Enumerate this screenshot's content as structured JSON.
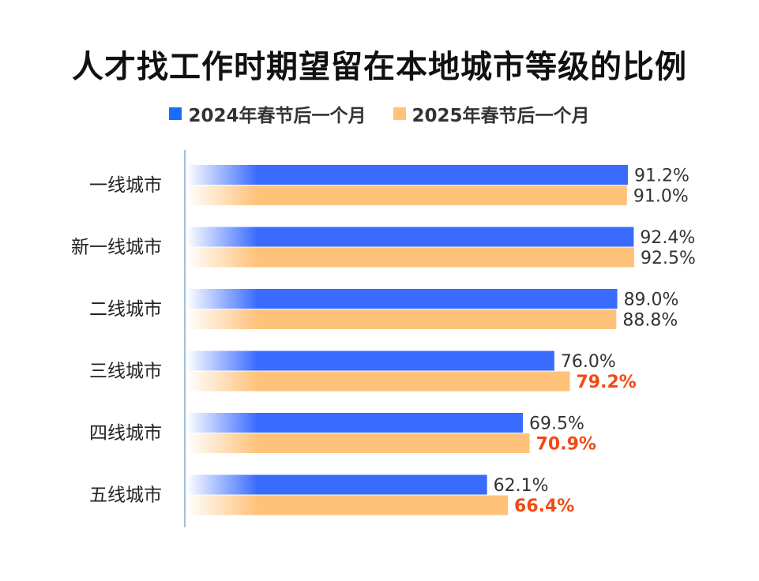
{
  "chart_data": {
    "type": "bar",
    "orientation": "horizontal",
    "title": "人才找工作时期望留在本地城市等级的比例",
    "categories": [
      "一线城市",
      "新一线城市",
      "二线城市",
      "三线城市",
      "四线城市",
      "五线城市"
    ],
    "series": [
      {
        "name": "2024年春节后一个月",
        "color": "#3a6bff",
        "values": [
          91.2,
          92.4,
          89.0,
          76.0,
          69.5,
          62.1
        ],
        "labels": [
          "91.2%",
          "92.4%",
          "89.0%",
          "76.0%",
          "69.5%",
          "62.1%"
        ],
        "highlight": [
          false,
          false,
          false,
          false,
          false,
          false
        ]
      },
      {
        "name": "2025年春节后一个月",
        "color": "#ffc27a",
        "values": [
          91.0,
          92.5,
          88.8,
          79.2,
          70.9,
          66.4
        ],
        "labels": [
          "91.0%",
          "92.5%",
          "88.8%",
          "79.2%",
          "70.9%",
          "66.4%"
        ],
        "highlight": [
          false,
          false,
          false,
          true,
          true,
          true
        ]
      }
    ],
    "highlight_color": "#f24a14",
    "legend_position": "top-center",
    "xlim": [
      0,
      100
    ],
    "grid": false
  },
  "colors": {
    "legend_2024": "#1a6cff",
    "legend_2025": "#ffc27a",
    "axis_line": "#9ec0dc",
    "label_text": "#333333"
  }
}
